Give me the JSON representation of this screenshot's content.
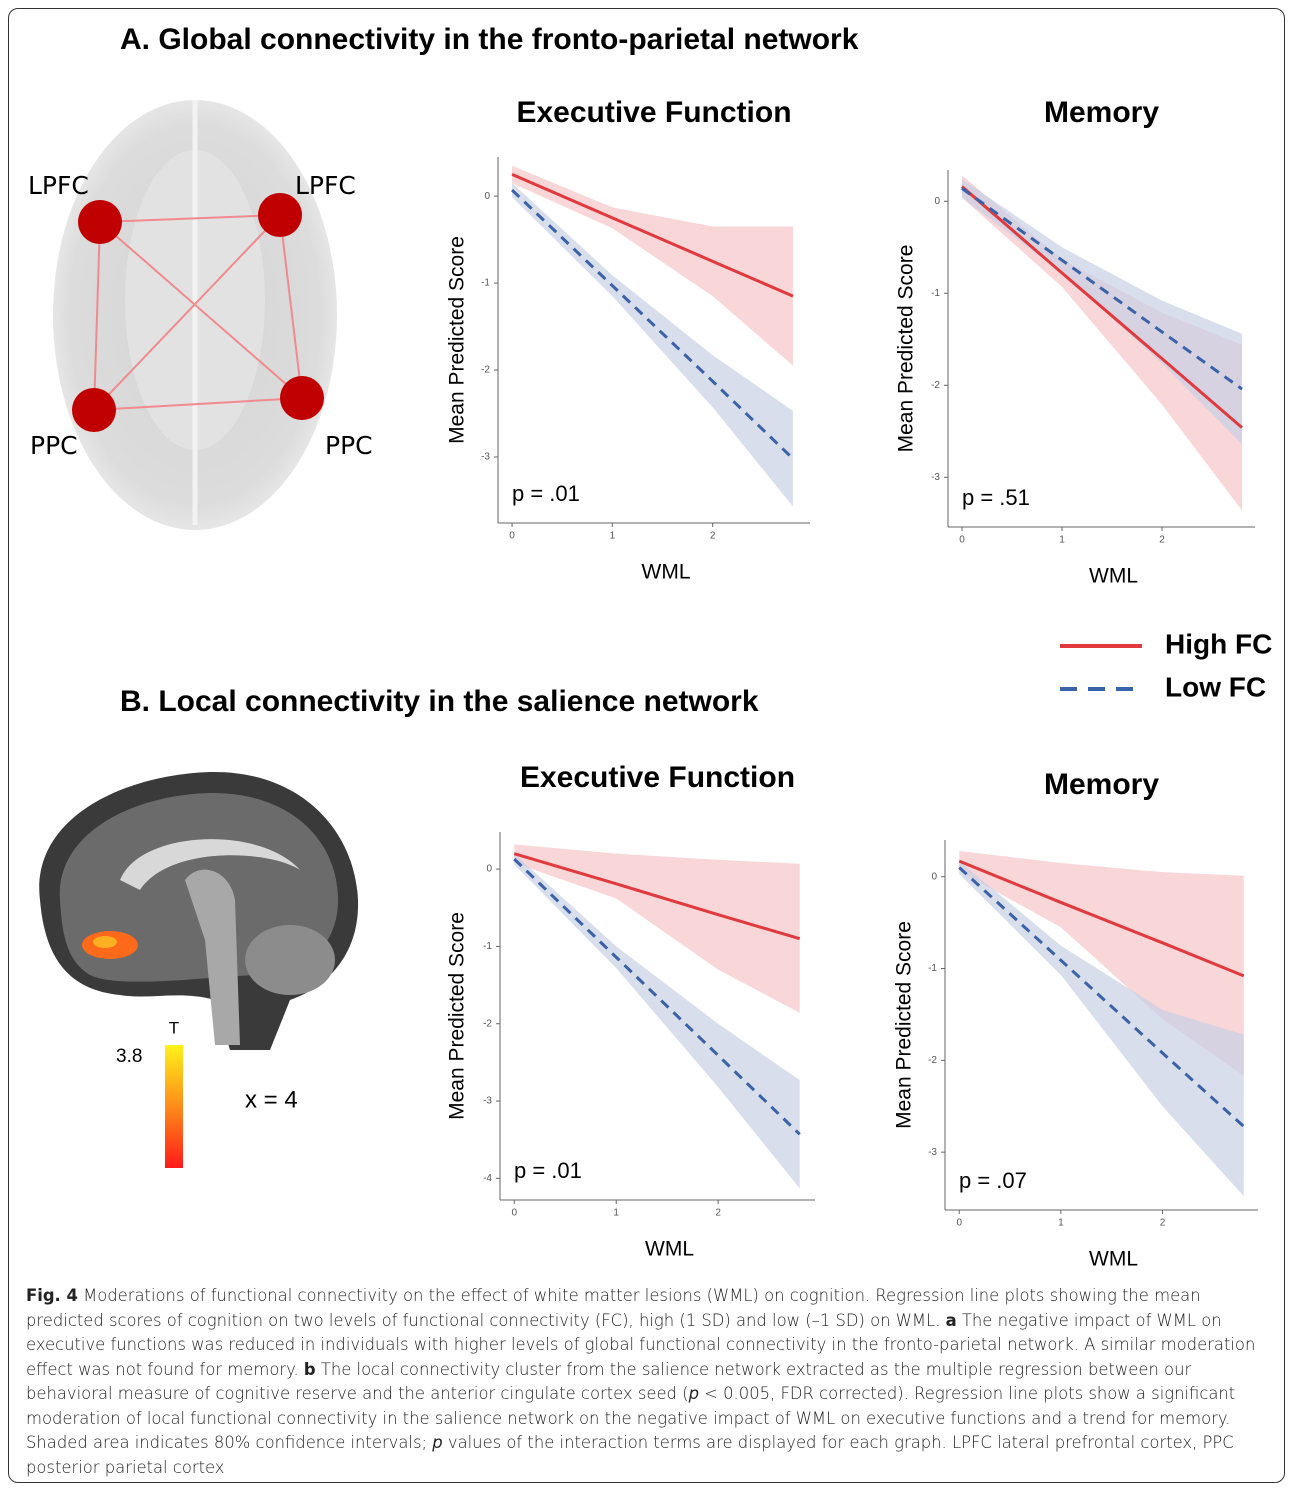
{
  "panels": [
    {
      "title": "A. Global connectivity in the fronto-parietal network",
      "brain_labels": [
        "LPFC",
        "LPFC",
        "PPC",
        "PPC"
      ]
    },
    {
      "title": "B. Local connectivity in the salience network",
      "colorbar_label": "T",
      "colorbar_max": "3.8",
      "slice_label": "x = 4"
    }
  ],
  "legend": [
    {
      "name": "High FC",
      "color": "#e03a3e",
      "dash": false
    },
    {
      "name": "Low FC",
      "color": "#3a62a8",
      "dash": true
    }
  ],
  "chart_data": [
    {
      "type": "line",
      "title": "Executive Function",
      "xlabel": "WML",
      "ylabel": "Mean Predicted Score",
      "annotation": "p = .01",
      "x": [
        0,
        1,
        2,
        2.8
      ],
      "xlim": [
        -0.14,
        2.97
      ],
      "ylim": [
        -3.76,
        0.45
      ],
      "xticks": [
        0,
        1,
        2
      ],
      "yticks": [
        0,
        -1,
        -2,
        -3
      ],
      "series": [
        {
          "color": "#e03a3e",
          "band_color": "#f7c5c8",
          "dash": false,
          "values": [
            0.25,
            -0.25,
            -0.75,
            -1.15
          ],
          "upper": [
            0.35,
            -0.13,
            -0.35,
            -0.35
          ],
          "lower": [
            0.15,
            -0.37,
            -1.15,
            -1.95
          ]
        },
        {
          "color": "#3a62a8",
          "band_color": "#c9d0e6",
          "dash": true,
          "values": [
            0.07,
            -1.03,
            -2.13,
            -3.02
          ],
          "upper": [
            0.15,
            -0.91,
            -1.83,
            -2.47
          ],
          "lower": [
            -0.01,
            -1.15,
            -2.43,
            -3.57
          ]
        }
      ]
    },
    {
      "type": "line",
      "title": "Memory",
      "xlabel": "WML",
      "ylabel": "Mean Predicted Score",
      "annotation": "p = .51",
      "x": [
        0,
        1,
        2,
        2.8
      ],
      "xlim": [
        -0.14,
        2.93
      ],
      "ylim": [
        -3.54,
        0.34
      ],
      "xticks": [
        0,
        1,
        2
      ],
      "yticks": [
        0,
        -1,
        -2,
        -3
      ],
      "series": [
        {
          "color": "#e03a3e",
          "band_color": "#f7c5c8",
          "dash": false,
          "values": [
            0.16,
            -0.78,
            -1.71,
            -2.46
          ],
          "upper": [
            0.28,
            -0.63,
            -1.21,
            -1.56
          ],
          "lower": [
            0.04,
            -0.93,
            -2.21,
            -3.36
          ]
        },
        {
          "color": "#3a62a8",
          "band_color": "#c9d0e6",
          "dash": true,
          "values": [
            0.14,
            -0.64,
            -1.42,
            -2.04
          ],
          "upper": [
            0.24,
            -0.5,
            -1.08,
            -1.44
          ],
          "lower": [
            0.04,
            -0.78,
            -1.76,
            -2.64
          ]
        }
      ]
    },
    {
      "type": "line",
      "title": "Executive Function",
      "xlabel": "WML",
      "ylabel": "Mean Predicted Score",
      "annotation": "p = .01",
      "x": [
        0,
        1,
        2,
        2.8
      ],
      "xlim": [
        -0.14,
        2.95
      ],
      "ylim": [
        -4.28,
        0.48
      ],
      "xticks": [
        0,
        1,
        2
      ],
      "yticks": [
        0,
        -1,
        -2,
        -3,
        -4
      ],
      "series": [
        {
          "color": "#e03a3e",
          "band_color": "#f7c5c8",
          "dash": false,
          "values": [
            0.2,
            -0.19,
            -0.59,
            -0.9
          ],
          "upper": [
            0.32,
            0.2,
            0.12,
            0.07
          ],
          "lower": [
            0.08,
            -0.38,
            -1.3,
            -1.86
          ]
        },
        {
          "color": "#3a62a8",
          "band_color": "#c9d0e6",
          "dash": true,
          "values": [
            0.13,
            -1.14,
            -2.41,
            -3.43
          ],
          "upper": [
            0.2,
            -1.0,
            -2.0,
            -2.73
          ],
          "lower": [
            0.06,
            -1.28,
            -2.82,
            -4.13
          ]
        }
      ]
    },
    {
      "type": "line",
      "title": "Memory",
      "xlabel": "WML",
      "ylabel": "Mean Predicted Score",
      "annotation": "p = .07",
      "x": [
        0,
        1,
        2,
        2.8
      ],
      "xlim": [
        -0.14,
        2.94
      ],
      "ylim": [
        -3.63,
        0.4
      ],
      "xticks": [
        0,
        1,
        2
      ],
      "yticks": [
        0,
        -1,
        -2,
        -3
      ],
      "series": [
        {
          "color": "#e03a3e",
          "band_color": "#f7c5c8",
          "dash": false,
          "values": [
            0.17,
            -0.28,
            -0.72,
            -1.08
          ],
          "upper": [
            0.28,
            0.15,
            0.05,
            0.01
          ],
          "lower": [
            0.06,
            -0.55,
            -1.55,
            -2.17
          ]
        },
        {
          "color": "#3a62a8",
          "band_color": "#c9d0e6",
          "dash": true,
          "values": [
            0.1,
            -0.91,
            -1.92,
            -2.72
          ],
          "upper": [
            0.17,
            -0.75,
            -1.45,
            -1.72
          ],
          "lower": [
            0.03,
            -1.07,
            -2.5,
            -3.48
          ]
        }
      ]
    }
  ],
  "caption": [
    {
      "text": "Fig. 4",
      "style": "bold"
    },
    {
      "text": " Moderations of functional connectivity on the effect of white matter lesions (WML) on cognition. Regression line plots showing the mean predicted scores of cognition on two levels of functional connectivity (FC), high (1 SD) and low (–1 SD) on WML. ",
      "style": "normal"
    },
    {
      "text": "a",
      "style": "bold"
    },
    {
      "text": " The negative impact of WML on executive functions was reduced in individuals with higher levels of global functional connectivity in the fronto-parietal network. A similar moderation effect was not found for memory. ",
      "style": "normal"
    },
    {
      "text": "b",
      "style": "bold"
    },
    {
      "text": " The local connectivity cluster from the salience network extracted as the multiple regression between our behavioral measure of cognitive reserve and the anterior cingulate cortex seed (",
      "style": "normal"
    },
    {
      "text": "p",
      "style": "italic"
    },
    {
      "text": " < 0.005, FDR corrected). Regression line plots show a significant moderation of local functional connectivity in the salience network on the negative impact of WML on executive functions and a trend for memory. Shaded area indicates 80% confidence intervals; ",
      "style": "normal"
    },
    {
      "text": "p",
      "style": "italic"
    },
    {
      "text": " values of the interaction terms are displayed for each graph. LPFC lateral prefrontal cortex, PPC posterior parietal cortex",
      "style": "normal"
    }
  ]
}
